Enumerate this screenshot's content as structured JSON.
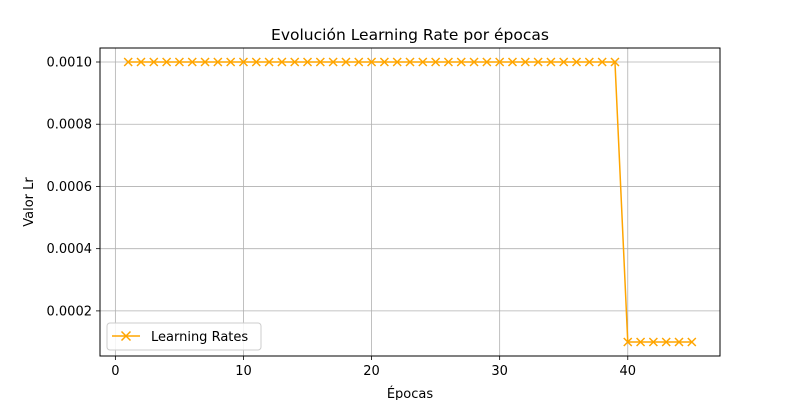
{
  "chart_data": {
    "type": "line",
    "title": "Evolución Learning Rate por épocas",
    "xlabel": "Épocas",
    "ylabel": "Valor Lr",
    "xlim": [
      -1.2,
      47.2
    ],
    "ylim": [
      5.5e-05,
      0.001045
    ],
    "x_ticks": [
      0,
      10,
      20,
      30,
      40
    ],
    "x_tick_labels": [
      "0",
      "10",
      "20",
      "30",
      "40"
    ],
    "y_ticks": [
      0.0002,
      0.0004,
      0.0006,
      0.0008,
      0.001
    ],
    "y_tick_labels": [
      "0.0002",
      "0.0004",
      "0.0006",
      "0.0008",
      "0.0010"
    ],
    "grid": true,
    "legend_position": "lower-left",
    "series": [
      {
        "name": "Learning Rates",
        "color": "#ffa500",
        "marker": "x",
        "x": [
          1,
          2,
          3,
          4,
          5,
          6,
          7,
          8,
          9,
          10,
          11,
          12,
          13,
          14,
          15,
          16,
          17,
          18,
          19,
          20,
          21,
          22,
          23,
          24,
          25,
          26,
          27,
          28,
          29,
          30,
          31,
          32,
          33,
          34,
          35,
          36,
          37,
          38,
          39,
          40,
          41,
          42,
          43,
          44,
          45
        ],
        "values": [
          0.001,
          0.001,
          0.001,
          0.001,
          0.001,
          0.001,
          0.001,
          0.001,
          0.001,
          0.001,
          0.001,
          0.001,
          0.001,
          0.001,
          0.001,
          0.001,
          0.001,
          0.001,
          0.001,
          0.001,
          0.001,
          0.001,
          0.001,
          0.001,
          0.001,
          0.001,
          0.001,
          0.001,
          0.001,
          0.001,
          0.001,
          0.001,
          0.001,
          0.001,
          0.001,
          0.001,
          0.001,
          0.001,
          0.001,
          0.0001,
          0.0001,
          0.0001,
          0.0001,
          0.0001,
          0.0001
        ]
      }
    ]
  }
}
